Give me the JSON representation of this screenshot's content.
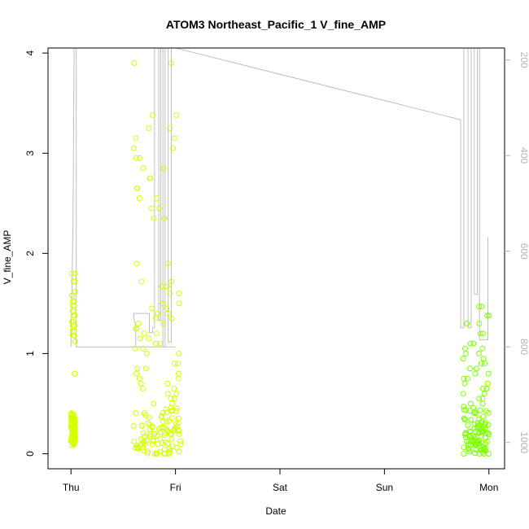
{
  "chart_data": {
    "type": "scatter",
    "title": "ATOM3 Northeast_Pacific_1 V_fine_AMP",
    "xlabel": "Date",
    "ylabel": "V_fine_AMP",
    "x_tick_labels": [
      "Thu",
      "Fri",
      "Sat",
      "Sun",
      "Mon"
    ],
    "xlim_days": [
      -0.22,
      4.15
    ],
    "ylim": [
      -0.15,
      4.05
    ],
    "y_ticks": [
      0,
      1,
      2,
      3,
      4
    ],
    "y2_ticks": [
      200,
      400,
      600,
      800,
      1000
    ],
    "y2lim_reversed": [
      1055,
      175
    ],
    "grid": false,
    "legend": "none",
    "colors": {
      "points_early": "#d4ff00",
      "points_late": "#7fff00",
      "line": "#bebebe",
      "axis": "#000000",
      "right_axis": "#b3b3b3"
    },
    "series": [
      {
        "type": "scatter",
        "clusters": [
          {
            "x_range": [
              0.0,
              0.04
            ],
            "y": [
              0.1,
              0.12,
              0.15,
              0.18,
              0.2,
              0.22,
              0.25,
              0.27,
              0.3,
              0.32,
              0.35,
              0.38,
              0.8,
              1.12,
              1.18,
              1.22,
              1.28,
              1.32,
              1.38,
              1.42,
              1.48,
              1.52,
              1.58,
              1.62,
              1.72,
              1.8
            ]
          },
          {
            "x_range": [
              0.6,
              1.05
            ],
            "y": [
              0.0,
              0.02,
              0.05,
              0.08,
              0.1,
              0.12,
              0.15,
              0.18,
              0.2,
              0.22,
              0.25,
              0.28,
              0.3,
              0.35,
              0.4,
              0.45,
              0.5,
              0.55,
              0.6,
              0.65,
              0.7,
              0.75,
              0.8,
              0.85,
              0.9,
              1.0,
              1.05,
              1.1,
              1.15,
              1.2,
              1.25,
              1.3,
              1.35,
              1.4,
              1.45,
              1.5,
              1.6,
              1.67,
              1.72,
              1.9,
              2.35,
              2.45,
              2.55,
              2.65,
              2.75,
              2.85,
              2.95,
              3.05,
              3.15,
              3.25,
              3.38,
              3.9
            ]
          },
          {
            "x_range": [
              3.75,
              4.0
            ],
            "y": [
              0.0,
              0.02,
              0.05,
              0.08,
              0.1,
              0.12,
              0.15,
              0.18,
              0.2,
              0.22,
              0.25,
              0.28,
              0.3,
              0.35,
              0.4,
              0.45,
              0.5,
              0.55,
              0.6,
              0.65,
              0.7,
              0.75,
              0.8,
              0.85,
              0.9,
              0.95,
              1.0,
              1.05,
              1.1,
              1.2,
              1.3,
              1.38,
              1.47
            ]
          }
        ]
      },
      {
        "type": "line",
        "axis": "right",
        "x": [
          0.0,
          0.02,
          0.03,
          0.05,
          0.05,
          1.0,
          1.0,
          0.62,
          0.62,
          0.6,
          0.6,
          0.6,
          0.75,
          0.75,
          0.78,
          0.78,
          0.8,
          0.8,
          0.84,
          0.84,
          0.86,
          0.86,
          0.88,
          0.88,
          0.9,
          0.9,
          0.93,
          0.93,
          0.96,
          0.96,
          1.0,
          1.0,
          3.73,
          3.73,
          3.76,
          3.76,
          3.8,
          3.8,
          3.83,
          3.83,
          3.86,
          3.86,
          3.89,
          3.89,
          3.91,
          3.91,
          3.99,
          3.99
        ],
        "y": [
          800,
          530,
          175,
          175,
          800,
          800,
          800,
          800,
          755,
          740,
          740,
          730,
          730,
          770,
          770,
          760,
          760,
          160,
          160,
          745,
          745,
          160,
          160,
          800,
          800,
          160,
          160,
          790,
          790,
          170,
          170,
          175,
          325,
          760,
          760,
          150,
          150,
          760,
          760,
          150,
          150,
          690,
          690,
          150,
          150,
          785,
          785,
          570
        ]
      }
    ]
  }
}
